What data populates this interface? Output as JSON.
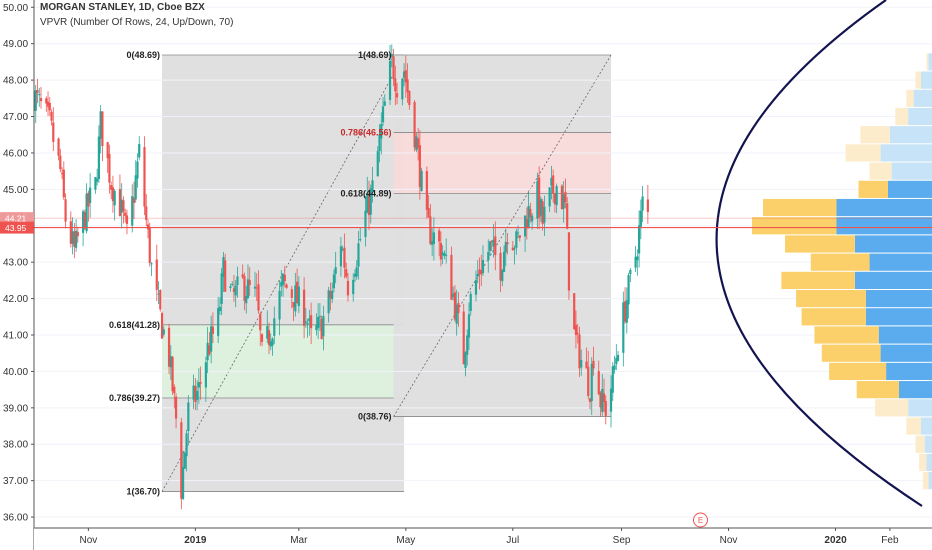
{
  "header": {
    "title": "MORGAN STANLEY, 1D, Cboe BZX",
    "indicator": "VPVR (Number Of Rows, 24, Up/Down, 70)"
  },
  "price_badges": {
    "upper": "44.21",
    "lower": "43.95"
  },
  "event_marker": "E",
  "colors": {
    "up": "#26a69a",
    "down": "#ef5350",
    "price_line": "#ef5350",
    "vp_up_in": "#5aacef",
    "vp_down_in": "#fbd06a",
    "vp_up_out": "#c6e3f7",
    "vp_down_out": "#fdeccb",
    "fib_box": "#dedede",
    "fib_red": "#f8d9d9",
    "fib_green": "#dcefdc",
    "curve": "#13144f"
  },
  "chart_data": {
    "type": "candlestick",
    "title": "MORGAN STANLEY, 1D, Cboe BZX",
    "ylim": [
      35.7,
      50.2
    ],
    "y_ticks": [
      "36.00",
      "37.00",
      "38.00",
      "39.00",
      "40.00",
      "41.00",
      "42.00",
      "43.00",
      "44.00",
      "45.00",
      "46.00",
      "47.00",
      "48.00",
      "49.00",
      "50.00"
    ],
    "x_ticks": [
      {
        "label": "Nov",
        "date": "2018-11-01"
      },
      {
        "label": "2019",
        "date": "2019-01-01"
      },
      {
        "label": "Mar",
        "date": "2019-03-01"
      },
      {
        "label": "May",
        "date": "2019-05-01"
      },
      {
        "label": "Jul",
        "date": "2019-07-01"
      },
      {
        "label": "Sep",
        "date": "2019-09-01"
      },
      {
        "label": "Nov",
        "date": "2019-11-01"
      },
      {
        "label": "2020",
        "date": "2020-01-01"
      },
      {
        "label": "Feb",
        "date": "2020-02-01"
      }
    ],
    "x_range": [
      "2018-10-01",
      "2020-02-25"
    ],
    "last_price": 43.95,
    "price_badge_upper": 44.21,
    "price_path": [
      [
        "2018-10-01",
        47.6
      ],
      [
        "2018-10-10",
        46.8
      ],
      [
        "2018-10-16",
        45.5
      ],
      [
        "2018-10-19",
        44.2
      ],
      [
        "2018-10-24",
        43.3
      ],
      [
        "2018-10-30",
        44.3
      ],
      [
        "2018-11-05",
        45.1
      ],
      [
        "2018-11-08",
        46.8
      ],
      [
        "2018-11-14",
        45.2
      ],
      [
        "2018-11-19",
        44.6
      ],
      [
        "2018-11-23",
        43.7
      ],
      [
        "2018-11-27",
        44.9
      ],
      [
        "2018-11-30",
        46.0
      ],
      [
        "2018-12-04",
        44.1
      ],
      [
        "2018-12-08",
        42.4
      ],
      [
        "2018-12-12",
        41.5
      ],
      [
        "2018-12-17",
        40.4
      ],
      [
        "2018-12-21",
        38.7
      ],
      [
        "2018-12-24",
        36.8
      ],
      [
        "2018-12-28",
        38.9
      ],
      [
        "2019-01-03",
        39.5
      ],
      [
        "2019-01-08",
        40.6
      ],
      [
        "2019-01-14",
        41.4
      ],
      [
        "2019-01-17",
        42.8
      ],
      [
        "2019-01-22",
        42.0
      ],
      [
        "2019-01-28",
        42.4
      ],
      [
        "2019-02-05",
        42.0
      ],
      [
        "2019-02-08",
        40.4
      ],
      [
        "2019-02-14",
        41.3
      ],
      [
        "2019-02-20",
        42.4
      ],
      [
        "2019-02-26",
        42.1
      ],
      [
        "2019-03-05",
        41.6
      ],
      [
        "2019-03-08",
        40.9
      ],
      [
        "2019-03-14",
        41.3
      ],
      [
        "2019-03-20",
        42.2
      ],
      [
        "2019-03-25",
        43.6
      ],
      [
        "2019-03-29",
        42.4
      ],
      [
        "2019-04-03",
        43.2
      ],
      [
        "2019-04-08",
        44.3
      ],
      [
        "2019-04-12",
        45.0
      ],
      [
        "2019-04-16",
        46.3
      ],
      [
        "2019-04-19",
        47.3
      ],
      [
        "2019-04-23",
        48.5
      ],
      [
        "2019-04-26",
        47.9
      ],
      [
        "2019-04-30",
        48.3
      ],
      [
        "2019-05-03",
        47.4
      ],
      [
        "2019-05-07",
        46.3
      ],
      [
        "2019-05-10",
        45.1
      ],
      [
        "2019-05-13",
        44.0
      ],
      [
        "2019-05-17",
        43.7
      ],
      [
        "2019-05-22",
        43.3
      ],
      [
        "2019-05-28",
        42.1
      ],
      [
        "2019-06-03",
        40.4
      ],
      [
        "2019-06-06",
        41.8
      ],
      [
        "2019-06-12",
        42.8
      ],
      [
        "2019-06-18",
        43.4
      ],
      [
        "2019-06-24",
        42.9
      ],
      [
        "2019-06-28",
        43.9
      ],
      [
        "2019-07-03",
        43.5
      ],
      [
        "2019-07-09",
        44.3
      ],
      [
        "2019-07-15",
        44.8
      ],
      [
        "2019-07-18",
        44.1
      ],
      [
        "2019-07-23",
        44.9
      ],
      [
        "2019-07-26",
        45.1
      ],
      [
        "2019-07-31",
        44.5
      ],
      [
        "2019-08-02",
        42.6
      ],
      [
        "2019-08-05",
        41.0
      ],
      [
        "2019-08-09",
        40.3
      ],
      [
        "2019-08-14",
        39.6
      ],
      [
        "2019-08-16",
        40.5
      ],
      [
        "2019-08-20",
        39.2
      ],
      [
        "2019-08-23",
        39.0
      ],
      [
        "2019-08-27",
        39.8
      ],
      [
        "2019-08-30",
        40.8
      ],
      [
        "2019-09-04",
        42.0
      ],
      [
        "2019-09-09",
        43.2
      ],
      [
        "2019-09-12",
        44.2
      ],
      [
        "2019-09-13",
        44.6
      ],
      [
        "2019-09-16",
        44.3
      ]
    ],
    "fibonacci": [
      {
        "name": "fib-1",
        "from_date": "2018-12-13",
        "to_date": "2019-04-30",
        "levels": [
          {
            "label": "0(48.69)",
            "price": 48.69
          },
          {
            "label": "0.618(41.28)",
            "price": 41.28
          },
          {
            "label": "0.786(39.27)",
            "price": 39.27
          },
          {
            "label": "1(36.70)",
            "price": 36.7
          }
        ],
        "highlight": {
          "from": 39.27,
          "to": 41.28,
          "color": "green"
        }
      },
      {
        "name": "fib-2",
        "from_date": "2019-04-24",
        "to_date": "2019-08-26",
        "levels": [
          {
            "label": "1(48.69)",
            "price": 48.69
          },
          {
            "label": "0.786(46.56)",
            "price": 46.56
          },
          {
            "label": "0.618(44.89)",
            "price": 44.89
          },
          {
            "label": "0(38.76)",
            "price": 38.76
          }
        ],
        "highlight": {
          "from": 44.89,
          "to": 46.56,
          "color": "red"
        }
      }
    ],
    "volume_profile": [
      {
        "price": 48.5,
        "up": 0.02,
        "down": 0.01
      },
      {
        "price": 48.0,
        "up": 0.06,
        "down": 0.03
      },
      {
        "price": 47.5,
        "up": 0.1,
        "down": 0.04
      },
      {
        "price": 47.0,
        "up": 0.13,
        "down": 0.07
      },
      {
        "price": 46.5,
        "up": 0.23,
        "down": 0.16
      },
      {
        "price": 46.0,
        "up": 0.28,
        "down": 0.19
      },
      {
        "price": 45.5,
        "up": 0.22,
        "down": 0.12
      },
      {
        "price": 45.0,
        "up": 0.24,
        "down": 0.16
      },
      {
        "price": 44.5,
        "up": 0.52,
        "down": 0.4
      },
      {
        "price": 44.0,
        "up": 0.52,
        "down": 0.46
      },
      {
        "price": 43.5,
        "up": 0.42,
        "down": 0.38
      },
      {
        "price": 43.0,
        "up": 0.34,
        "down": 0.32
      },
      {
        "price": 42.5,
        "up": 0.42,
        "down": 0.4
      },
      {
        "price": 42.0,
        "up": 0.36,
        "down": 0.38
      },
      {
        "price": 41.5,
        "up": 0.36,
        "down": 0.35
      },
      {
        "price": 41.0,
        "up": 0.29,
        "down": 0.35
      },
      {
        "price": 40.5,
        "up": 0.28,
        "down": 0.32
      },
      {
        "price": 40.0,
        "up": 0.25,
        "down": 0.31
      },
      {
        "price": 39.5,
        "up": 0.18,
        "down": 0.23
      },
      {
        "price": 39.0,
        "up": 0.13,
        "down": 0.18
      },
      {
        "price": 38.5,
        "up": 0.06,
        "down": 0.08
      },
      {
        "price": 38.0,
        "up": 0.04,
        "down": 0.05
      },
      {
        "price": 37.5,
        "up": 0.03,
        "down": 0.04
      },
      {
        "price": 37.0,
        "up": 0.02,
        "down": 0.03
      }
    ],
    "value_area": [
      39.5,
      45.0
    ]
  }
}
